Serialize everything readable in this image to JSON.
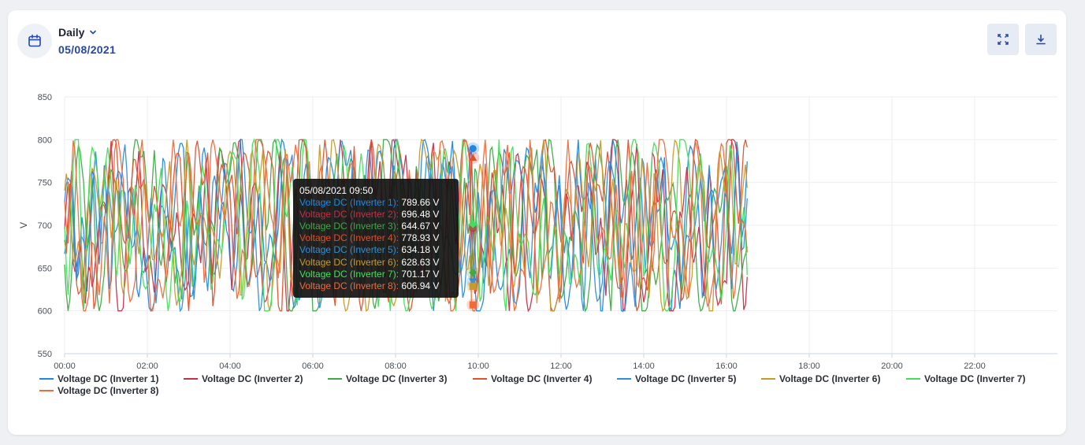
{
  "header": {
    "period_label": "Daily",
    "date_label": "05/08/2021"
  },
  "tooltip": {
    "title": "05/08/2021 09:50",
    "rows": [
      {
        "name": "Voltage DC (Inverter 1):",
        "value": "789.66 V",
        "color": "#1e88e5"
      },
      {
        "name": "Voltage DC (Inverter 2):",
        "value": "696.48 V",
        "color": "#c62f4a"
      },
      {
        "name": "Voltage DC (Inverter 3):",
        "value": "644.67 V",
        "color": "#3daa45"
      },
      {
        "name": "Voltage DC (Inverter 4):",
        "value": "778.93 V",
        "color": "#e0502a"
      },
      {
        "name": "Voltage DC (Inverter 5):",
        "value": "634.18 V",
        "color": "#2f8ed8"
      },
      {
        "name": "Voltage DC (Inverter 6):",
        "value": "628.63 V",
        "color": "#c79a2a"
      },
      {
        "name": "Voltage DC (Inverter 7):",
        "value": "701.17 V",
        "color": "#41e05a"
      },
      {
        "name": "Voltage DC (Inverter 8):",
        "value": "606.94 V",
        "color": "#f06a3a"
      }
    ]
  },
  "chart_data": {
    "type": "line",
    "title": "",
    "xlabel": "",
    "ylabel": "V",
    "ylim": [
      550,
      850
    ],
    "yticks": [
      "550",
      "600",
      "650",
      "700",
      "750",
      "800",
      "850"
    ],
    "xticks": [
      "00:00",
      "02:00",
      "04:00",
      "06:00",
      "08:00",
      "10:00",
      "12:00",
      "14:00",
      "16:00",
      "18:00",
      "20:00",
      "22:00"
    ],
    "x_range": [
      "00:00",
      "24:00"
    ],
    "data_end": "16:30",
    "grid": true,
    "legend_position": "bottom",
    "highlight_time": "09:50",
    "series": [
      {
        "name": "Voltage DC (Inverter 1)",
        "color": "#1e88e5",
        "marker": "circle",
        "value_at_highlight": 789.66,
        "range": [
          600,
          800
        ]
      },
      {
        "name": "Voltage DC (Inverter 2)",
        "color": "#c62f4a",
        "marker": "circle",
        "value_at_highlight": 696.48,
        "range": [
          600,
          800
        ]
      },
      {
        "name": "Voltage DC (Inverter 3)",
        "color": "#3daa45",
        "marker": "diamond",
        "value_at_highlight": 644.67,
        "range": [
          600,
          800
        ]
      },
      {
        "name": "Voltage DC (Inverter 4)",
        "color": "#e0502a",
        "marker": "triangle",
        "value_at_highlight": 778.93,
        "range": [
          600,
          800
        ]
      },
      {
        "name": "Voltage DC (Inverter 5)",
        "color": "#2f8ed8",
        "marker": "triangle-down",
        "value_at_highlight": 634.18,
        "range": [
          600,
          800
        ]
      },
      {
        "name": "Voltage DC (Inverter 6)",
        "color": "#c79a2a",
        "marker": "square",
        "value_at_highlight": 628.63,
        "range": [
          600,
          800
        ]
      },
      {
        "name": "Voltage DC (Inverter 7)",
        "color": "#41e05a",
        "marker": "diamond",
        "value_at_highlight": 701.17,
        "range": [
          600,
          800
        ]
      },
      {
        "name": "Voltage DC (Inverter 8)",
        "color": "#f06a3a",
        "marker": "square",
        "value_at_highlight": 606.94,
        "range": [
          600,
          800
        ]
      }
    ]
  },
  "icons": {
    "calendar": "calendar-icon",
    "chevron": "chevron-down-icon",
    "fullscreen": "fullscreen-icon",
    "download": "download-icon"
  },
  "colors": {
    "accent": "#2747a8",
    "button_bg": "#e6ebf4"
  }
}
